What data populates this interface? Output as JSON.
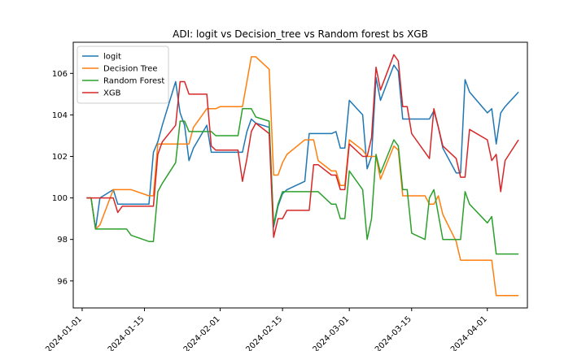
{
  "chart_data": {
    "type": "line",
    "title": "ADI: logit vs Decision_tree vs Random forest bs XGB",
    "xlabel": "",
    "ylabel": "",
    "xlim": [
      "2023-12-30",
      "2024-04-10"
    ],
    "ylim": [
      94.7,
      107.5
    ],
    "x_ticks": [
      "2024-01-01",
      "2024-01-15",
      "2024-02-01",
      "2024-02-15",
      "2024-03-01",
      "2024-03-15",
      "2024-04-01"
    ],
    "y_ticks": [
      96,
      98,
      100,
      102,
      104,
      106
    ],
    "grid": false,
    "legend_position": "top-left",
    "x": [
      "2024-01-02",
      "2024-01-03",
      "2024-01-04",
      "2024-01-05",
      "2024-01-08",
      "2024-01-09",
      "2024-01-10",
      "2024-01-11",
      "2024-01-12",
      "2024-01-16",
      "2024-01-17",
      "2024-01-18",
      "2024-01-19",
      "2024-01-22",
      "2024-01-23",
      "2024-01-24",
      "2024-01-25",
      "2024-01-26",
      "2024-01-29",
      "2024-01-30",
      "2024-01-31",
      "2024-02-01",
      "2024-02-02",
      "2024-02-05",
      "2024-02-06",
      "2024-02-07",
      "2024-02-08",
      "2024-02-09",
      "2024-02-12",
      "2024-02-13",
      "2024-02-14",
      "2024-02-15",
      "2024-02-16",
      "2024-02-20",
      "2024-02-21",
      "2024-02-22",
      "2024-02-23",
      "2024-02-26",
      "2024-02-27",
      "2024-02-28",
      "2024-02-29",
      "2024-03-01",
      "2024-03-04",
      "2024-03-05",
      "2024-03-06",
      "2024-03-07",
      "2024-03-08",
      "2024-03-11",
      "2024-03-12",
      "2024-03-13",
      "2024-03-14",
      "2024-03-15",
      "2024-03-18",
      "2024-03-19",
      "2024-03-20",
      "2024-03-21",
      "2024-03-22",
      "2024-03-25",
      "2024-03-26",
      "2024-03-27",
      "2024-03-28",
      "2024-04-01",
      "2024-04-02",
      "2024-04-03",
      "2024-04-04",
      "2024-04-05",
      "2024-04-08"
    ],
    "series": [
      {
        "name": "logit",
        "color": "#1f77b4",
        "values": [
          100.0,
          100.0,
          98.5,
          100.0,
          100.4,
          99.7,
          99.7,
          99.7,
          99.7,
          99.7,
          102.2,
          102.7,
          103.5,
          105.6,
          104.1,
          103.5,
          101.8,
          102.4,
          103.5,
          102.2,
          102.2,
          102.2,
          102.2,
          102.2,
          102.2,
          103.2,
          103.8,
          103.6,
          103.4,
          98.6,
          99.6,
          100.2,
          100.4,
          100.8,
          103.1,
          103.1,
          103.1,
          103.1,
          103.2,
          102.4,
          102.4,
          104.7,
          104.0,
          101.4,
          102.0,
          105.8,
          104.7,
          106.4,
          106.1,
          103.8,
          103.8,
          103.8,
          103.8,
          103.8,
          104.2,
          103.4,
          102.4,
          101.2,
          101.2,
          105.7,
          105.1,
          104.1,
          104.3,
          102.6,
          104.1,
          104.4,
          105.1
        ]
      },
      {
        "name": "Decision Tree",
        "color": "#ff7f0e",
        "values": [
          100.0,
          100.0,
          98.5,
          98.7,
          100.4,
          100.4,
          100.4,
          100.4,
          100.4,
          100.1,
          100.1,
          102.6,
          102.6,
          102.6,
          102.6,
          102.6,
          102.6,
          103.4,
          104.3,
          104.3,
          104.3,
          104.4,
          104.4,
          104.4,
          104.4,
          105.6,
          106.8,
          106.8,
          106.2,
          101.1,
          101.1,
          101.7,
          102.1,
          102.8,
          102.8,
          102.8,
          101.8,
          101.3,
          101.3,
          100.6,
          100.6,
          102.8,
          102.3,
          102.0,
          102.0,
          102.0,
          100.9,
          102.5,
          102.3,
          100.1,
          100.1,
          100.1,
          100.1,
          99.7,
          99.7,
          100.1,
          99.2,
          97.9,
          97.0,
          97.0,
          97.0,
          97.0,
          97.0,
          95.3,
          95.3,
          95.3,
          95.3
        ]
      },
      {
        "name": "Random Forest",
        "color": "#2ca02c",
        "values": [
          100.0,
          100.0,
          98.5,
          98.5,
          98.5,
          98.5,
          98.5,
          98.5,
          98.2,
          97.9,
          97.9,
          100.3,
          100.7,
          101.7,
          103.7,
          103.7,
          103.2,
          103.2,
          103.2,
          103.2,
          103.0,
          103.0,
          103.0,
          103.0,
          104.3,
          104.3,
          104.3,
          103.9,
          103.7,
          98.7,
          99.7,
          100.3,
          100.3,
          100.3,
          100.3,
          100.3,
          100.3,
          99.7,
          99.7,
          99.0,
          99.0,
          101.3,
          100.4,
          98.0,
          99.0,
          102.1,
          101.2,
          102.8,
          102.5,
          100.4,
          100.4,
          98.3,
          98.0,
          100.0,
          100.4,
          99.2,
          98.0,
          98.0,
          98.0,
          100.3,
          99.7,
          98.8,
          99.1,
          97.3,
          97.3,
          97.3,
          97.3
        ]
      },
      {
        "name": "XGB",
        "color": "#d62728",
        "values": [
          100.0,
          100.0,
          100.0,
          100.0,
          100.0,
          99.3,
          99.6,
          99.6,
          99.6,
          99.6,
          99.6,
          102.1,
          102.7,
          103.5,
          105.6,
          105.6,
          105.0,
          105.0,
          105.0,
          102.5,
          102.3,
          102.3,
          102.3,
          102.3,
          100.8,
          101.9,
          103.2,
          103.6,
          103.1,
          98.1,
          99.0,
          99.0,
          99.4,
          99.4,
          99.4,
          101.6,
          101.6,
          101.1,
          101.1,
          100.4,
          100.4,
          102.6,
          102.0,
          102.0,
          102.9,
          106.3,
          105.2,
          106.9,
          106.6,
          104.4,
          104.4,
          103.1,
          102.2,
          101.9,
          104.3,
          103.4,
          102.5,
          101.9,
          101.0,
          101.0,
          103.3,
          102.8,
          101.8,
          102.1,
          100.3,
          101.8,
          102.8
        ]
      }
    ]
  }
}
